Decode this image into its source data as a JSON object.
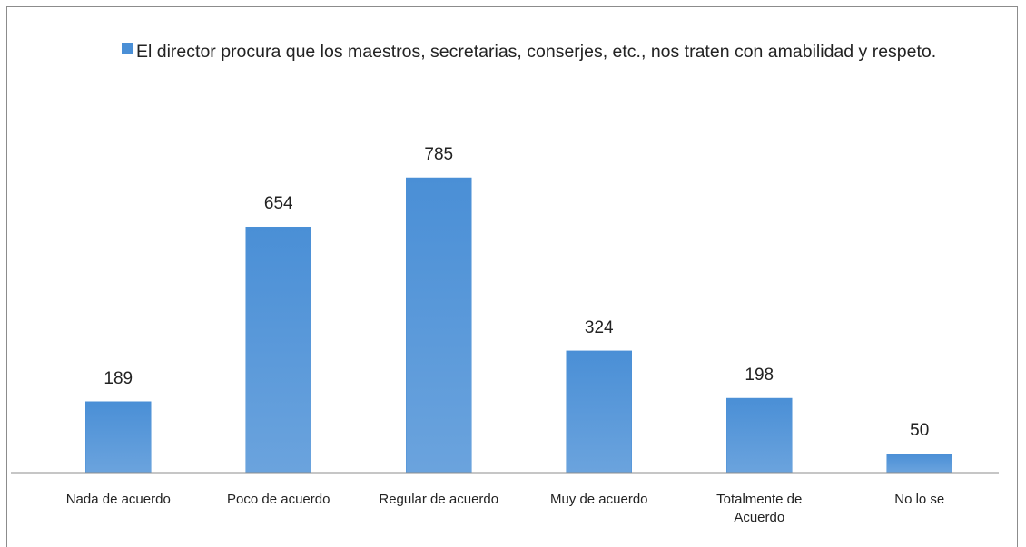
{
  "chart_data": {
    "type": "bar",
    "categories": [
      "Nada de acuerdo",
      "Poco de acuerdo",
      "Regular de acuerdo",
      "Muy de acuerdo",
      "Totalmente de Acuerdo",
      "No lo se"
    ],
    "series": [
      {
        "name": "El director procura que los maestros, secretarias, conserjes, etc., nos traten con amabilidad y respeto.",
        "color": "#4a8fd6",
        "values": [
          189,
          654,
          785,
          324,
          198,
          50
        ]
      }
    ],
    "ylim": [
      0,
      900
    ]
  }
}
